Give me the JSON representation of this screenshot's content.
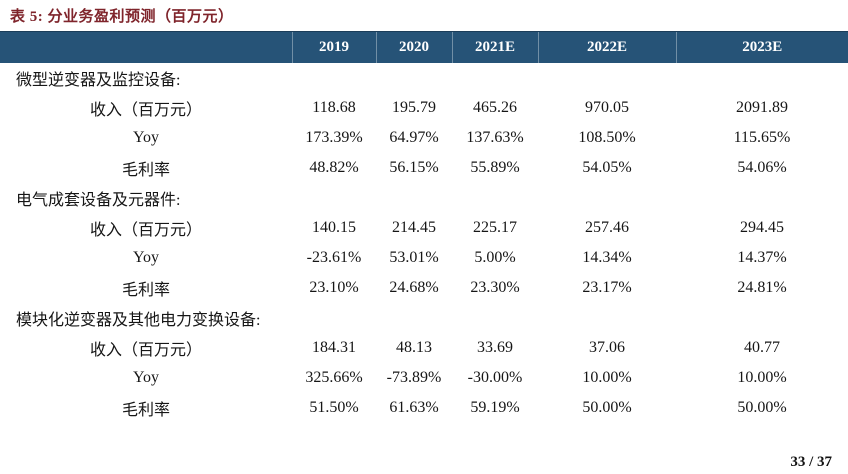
{
  "title": "表 5:  分业务盈利预测（百万元）",
  "page_indicator": "33 / 37",
  "colors": {
    "header_bg": "#265377",
    "title_color": "#7f242b"
  },
  "table": {
    "columns": [
      "2019",
      "2020",
      "2021E",
      "2022E",
      "2023E"
    ],
    "sections": [
      {
        "name": "微型逆变器及监控设备:",
        "rows": [
          {
            "label": "收入（百万元）",
            "values": [
              "118.68",
              "195.79",
              "465.26",
              "970.05",
              "2091.89"
            ]
          },
          {
            "label": "Yoy",
            "values": [
              "173.39%",
              "64.97%",
              "137.63%",
              "108.50%",
              "115.65%"
            ]
          },
          {
            "label": "毛利率",
            "values": [
              "48.82%",
              "56.15%",
              "55.89%",
              "54.05%",
              "54.06%"
            ]
          }
        ]
      },
      {
        "name": "电气成套设备及元器件:",
        "rows": [
          {
            "label": "收入（百万元）",
            "values": [
              "140.15",
              "214.45",
              "225.17",
              "257.46",
              "294.45"
            ]
          },
          {
            "label": "Yoy",
            "values": [
              "-23.61%",
              "53.01%",
              "5.00%",
              "14.34%",
              "14.37%"
            ]
          },
          {
            "label": "毛利率",
            "values": [
              "23.10%",
              "24.68%",
              "23.30%",
              "23.17%",
              "24.81%"
            ]
          }
        ]
      },
      {
        "name": "模块化逆变器及其他电力变换设备:",
        "rows": [
          {
            "label": "收入（百万元）",
            "values": [
              "184.31",
              "48.13",
              "33.69",
              "37.06",
              "40.77"
            ]
          },
          {
            "label": "Yoy",
            "values": [
              "325.66%",
              "-73.89%",
              "-30.00%",
              "10.00%",
              "10.00%"
            ]
          },
          {
            "label": "毛利率",
            "values": [
              "51.50%",
              "61.63%",
              "59.19%",
              "50.00%",
              "50.00%"
            ]
          }
        ]
      }
    ]
  }
}
